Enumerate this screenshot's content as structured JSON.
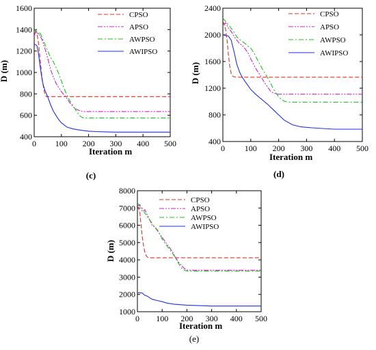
{
  "colors": {
    "CPSO": "#e0301e",
    "APSO": "#d21ed2",
    "AWPSO": "#16c416",
    "AWIPSO": "#1f2fe6",
    "axis": "#000000"
  },
  "chart_data": [
    {
      "panel": "(c)",
      "panel_bold": true,
      "type": "line",
      "xlabel": "Iteration m",
      "ylabel": "D (m)",
      "xlim": [
        0,
        500
      ],
      "ylim": [
        400,
        1600
      ],
      "xticks": [
        "0",
        "100",
        "200",
        "300",
        "400",
        "500"
      ],
      "yticks": [
        "400",
        "600",
        "800",
        "1000",
        "1200",
        "1400",
        "1600"
      ],
      "legend": "top-right",
      "series": [
        {
          "name": "CPSO",
          "style": "dashed",
          "x": [
            0,
            5,
            10,
            15,
            20,
            25,
            30,
            35,
            40,
            45,
            50,
            60,
            500
          ],
          "y": [
            1400,
            1385,
            1360,
            1290,
            1170,
            1040,
            930,
            850,
            790,
            775,
            775,
            775,
            775
          ]
        },
        {
          "name": "APSO",
          "style": "dashdotdot",
          "x": [
            0,
            5,
            10,
            20,
            30,
            40,
            50,
            60,
            70,
            80,
            90,
            100,
            110,
            120,
            130,
            140,
            150,
            160,
            170,
            180,
            190,
            500
          ],
          "y": [
            1340,
            1380,
            1370,
            1350,
            1300,
            1220,
            1130,
            1030,
            960,
            900,
            860,
            820,
            790,
            760,
            720,
            690,
            665,
            650,
            640,
            635,
            635,
            635
          ]
        },
        {
          "name": "AWPSO",
          "style": "dashdot",
          "x": [
            0,
            5,
            10,
            15,
            20,
            30,
            40,
            50,
            60,
            70,
            80,
            90,
            100,
            110,
            120,
            130,
            140,
            150,
            160,
            170,
            180,
            190,
            500
          ],
          "y": [
            1390,
            1400,
            1380,
            1360,
            1380,
            1320,
            1260,
            1200,
            1140,
            1100,
            1050,
            990,
            920,
            850,
            790,
            740,
            700,
            660,
            620,
            590,
            575,
            575,
            575
          ]
        },
        {
          "name": "AWIPSO",
          "style": "solid",
          "x": [
            0,
            5,
            10,
            15,
            20,
            25,
            30,
            35,
            40,
            50,
            60,
            70,
            80,
            90,
            100,
            110,
            120,
            140,
            160,
            180,
            200,
            230,
            260,
            300,
            500
          ],
          "y": [
            1265,
            1260,
            1250,
            1190,
            1090,
            1000,
            920,
            870,
            830,
            770,
            700,
            640,
            600,
            560,
            530,
            510,
            490,
            475,
            465,
            458,
            452,
            448,
            445,
            443,
            443
          ]
        }
      ]
    },
    {
      "panel": "(d)",
      "panel_bold": true,
      "type": "line",
      "xlabel": "Iteration m",
      "ylabel": "D (m)",
      "xlim": [
        0,
        500
      ],
      "ylim": [
        400,
        2400
      ],
      "xticks": [
        "0",
        "100",
        "200",
        "300",
        "400",
        "500"
      ],
      "yticks": [
        "400",
        "800",
        "1200",
        "1600",
        "2000",
        "2400"
      ],
      "legend": "top-right",
      "series": [
        {
          "name": "CPSO",
          "style": "dashed",
          "x": [
            0,
            5,
            10,
            15,
            20,
            25,
            30,
            35,
            40,
            50,
            500
          ],
          "y": [
            2200,
            2160,
            2080,
            1920,
            1700,
            1520,
            1420,
            1380,
            1370,
            1365,
            1365
          ]
        },
        {
          "name": "APSO",
          "style": "dashdotdot",
          "x": [
            0,
            10,
            20,
            30,
            40,
            50,
            60,
            70,
            80,
            90,
            100,
            110,
            120,
            130,
            140,
            150,
            160,
            170,
            180,
            190,
            200,
            500
          ],
          "y": [
            2150,
            2180,
            2100,
            2050,
            1980,
            1920,
            1870,
            1840,
            1790,
            1730,
            1640,
            1560,
            1480,
            1420,
            1350,
            1280,
            1220,
            1160,
            1130,
            1115,
            1110,
            1110
          ]
        },
        {
          "name": "AWPSO",
          "style": "dashdot",
          "x": [
            0,
            10,
            20,
            30,
            40,
            50,
            60,
            70,
            80,
            90,
            100,
            110,
            120,
            130,
            140,
            150,
            160,
            170,
            180,
            190,
            200,
            210,
            220,
            230,
            240,
            500
          ],
          "y": [
            2250,
            2200,
            2150,
            2100,
            2040,
            1970,
            1930,
            1900,
            1870,
            1830,
            1800,
            1740,
            1660,
            1580,
            1500,
            1430,
            1360,
            1280,
            1200,
            1130,
            1070,
            1030,
            1005,
            995,
            990,
            990
          ]
        },
        {
          "name": "AWIPSO",
          "style": "solid",
          "x": [
            0,
            10,
            20,
            30,
            40,
            50,
            60,
            70,
            80,
            90,
            100,
            120,
            140,
            160,
            180,
            200,
            220,
            250,
            280,
            320,
            360,
            400,
            500
          ],
          "y": [
            2000,
            1990,
            1980,
            1920,
            1750,
            1560,
            1440,
            1360,
            1300,
            1240,
            1180,
            1100,
            1030,
            960,
            880,
            800,
            720,
            650,
            620,
            605,
            595,
            585,
            585
          ]
        }
      ]
    },
    {
      "panel": "(e)",
      "panel_bold": false,
      "type": "line",
      "xlabel": "Iteration m",
      "ylabel": "D (m)",
      "xlim": [
        0,
        500
      ],
      "ylim": [
        1000,
        8000
      ],
      "xticks": [
        "0",
        "100",
        "200",
        "300",
        "400",
        "500"
      ],
      "yticks": [
        "1000",
        "2000",
        "3000",
        "4000",
        "5000",
        "6000",
        "7000",
        "8000"
      ],
      "legend": "top-right",
      "series": [
        {
          "name": "CPSO",
          "style": "dashed",
          "x": [
            0,
            5,
            10,
            15,
            20,
            25,
            30,
            35,
            40,
            45,
            50,
            60,
            500
          ],
          "y": [
            7100,
            7000,
            6700,
            6000,
            5300,
            4800,
            4450,
            4250,
            4160,
            4130,
            4120,
            4120,
            4120
          ]
        },
        {
          "name": "APSO",
          "style": "dashdotdot",
          "x": [
            0,
            10,
            20,
            30,
            40,
            50,
            60,
            70,
            80,
            90,
            100,
            110,
            120,
            130,
            140,
            150,
            160,
            170,
            180,
            190,
            200,
            210,
            220,
            230,
            500
          ],
          "y": [
            7100,
            7200,
            6800,
            6900,
            6600,
            6300,
            6000,
            5900,
            5700,
            5500,
            5300,
            5100,
            4900,
            4700,
            4500,
            4250,
            4000,
            3800,
            3650,
            3500,
            3420,
            3400,
            3400,
            3400,
            3400
          ]
        },
        {
          "name": "AWPSO",
          "style": "dashdot",
          "x": [
            0,
            10,
            20,
            30,
            40,
            50,
            60,
            70,
            80,
            90,
            100,
            110,
            120,
            130,
            140,
            150,
            160,
            170,
            180,
            190,
            200,
            210,
            500
          ],
          "y": [
            7300,
            7100,
            7000,
            6700,
            6500,
            6300,
            6100,
            5900,
            5750,
            5500,
            5200,
            5000,
            4800,
            4600,
            4400,
            4200,
            3950,
            3700,
            3500,
            3400,
            3360,
            3350,
            3350
          ]
        },
        {
          "name": "AWIPSO",
          "style": "solid",
          "x": [
            0,
            10,
            20,
            30,
            40,
            50,
            60,
            80,
            100,
            120,
            150,
            200,
            250,
            300,
            500
          ],
          "y": [
            2100,
            2100,
            2080,
            1950,
            1900,
            1800,
            1720,
            1650,
            1580,
            1500,
            1430,
            1380,
            1350,
            1330,
            1330
          ]
        }
      ]
    }
  ]
}
